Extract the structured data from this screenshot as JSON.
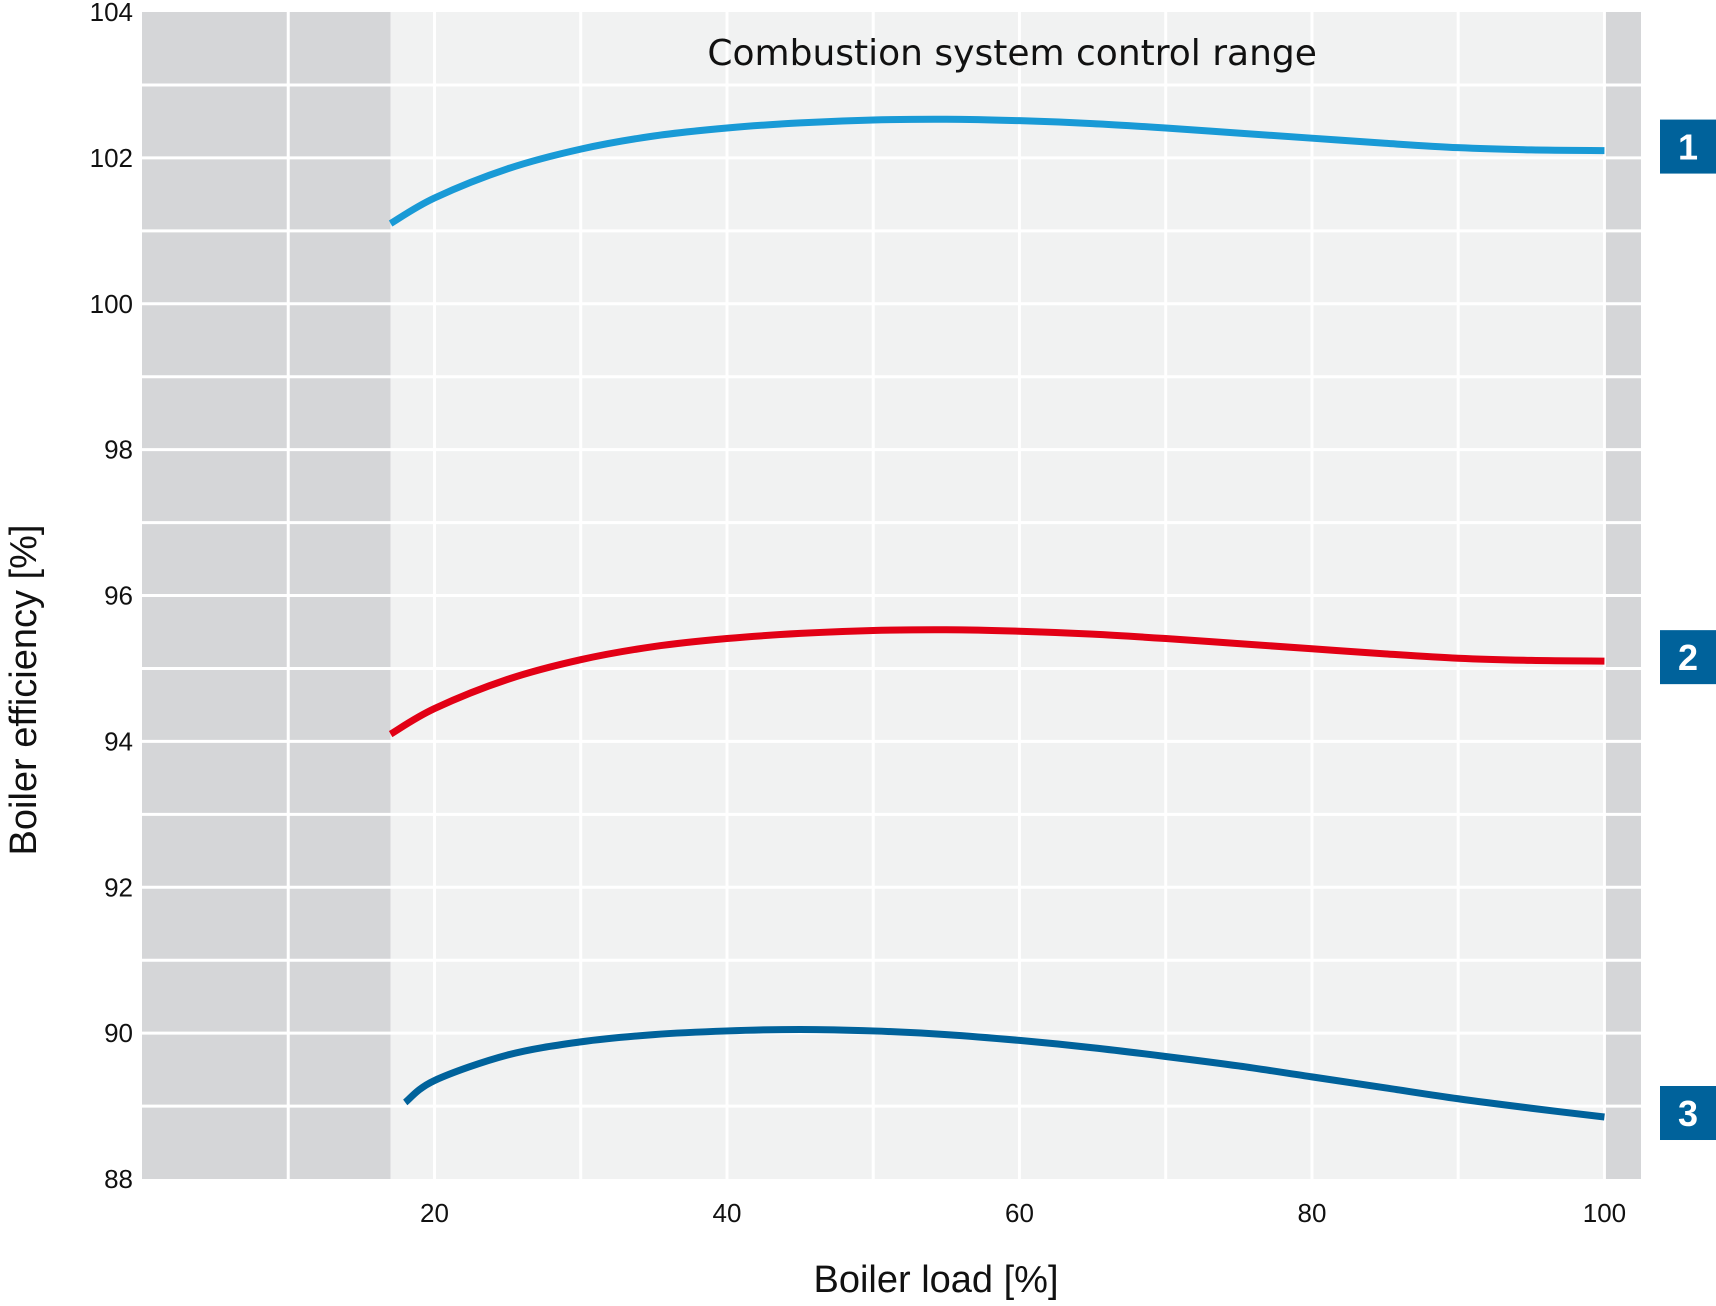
{
  "chart_data": {
    "type": "line",
    "xlabel": "Boiler load [%]",
    "ylabel": "Boiler efficiency [%]",
    "xlim": [
      0,
      102.5
    ],
    "ylim": [
      88,
      104
    ],
    "x_ticks": [
      20,
      40,
      60,
      80,
      100
    ],
    "y_ticks": [
      88,
      90,
      92,
      94,
      96,
      98,
      100,
      102,
      104
    ],
    "grid": true,
    "shaded_regions": [
      {
        "x_from": 0,
        "x_to": 17,
        "tone": "outside"
      },
      {
        "x_from": 17,
        "x_to": 100,
        "tone": "control",
        "label": "Combustion system control range"
      },
      {
        "x_from": 100,
        "x_to": 102.5,
        "tone": "outside"
      }
    ],
    "series": [
      {
        "badge": "1",
        "color": "#199ad6",
        "x": [
          17,
          20,
          25,
          30,
          35,
          40,
          45,
          50,
          55,
          60,
          65,
          70,
          75,
          80,
          85,
          90,
          95,
          100
        ],
        "y": [
          101.1,
          101.45,
          101.85,
          102.12,
          102.3,
          102.41,
          102.48,
          102.52,
          102.53,
          102.51,
          102.47,
          102.41,
          102.34,
          102.27,
          102.2,
          102.14,
          102.11,
          102.1
        ]
      },
      {
        "badge": "2",
        "color": "#e20015",
        "x": [
          17,
          20,
          25,
          30,
          35,
          40,
          45,
          50,
          55,
          60,
          65,
          70,
          75,
          80,
          85,
          90,
          95,
          100
        ],
        "y": [
          94.1,
          94.45,
          94.85,
          95.12,
          95.3,
          95.41,
          95.48,
          95.52,
          95.53,
          95.51,
          95.47,
          95.41,
          95.34,
          95.27,
          95.2,
          95.14,
          95.11,
          95.1
        ]
      },
      {
        "badge": "3",
        "color": "#00629b",
        "x": [
          18,
          20,
          25,
          30,
          35,
          40,
          45,
          50,
          55,
          60,
          65,
          70,
          75,
          80,
          85,
          90,
          95,
          100
        ],
        "y": [
          89.05,
          89.35,
          89.7,
          89.88,
          89.98,
          90.03,
          90.05,
          90.03,
          89.98,
          89.9,
          89.8,
          89.68,
          89.55,
          89.4,
          89.25,
          89.1,
          88.97,
          88.85
        ]
      }
    ],
    "badge_color": "#00629b"
  }
}
